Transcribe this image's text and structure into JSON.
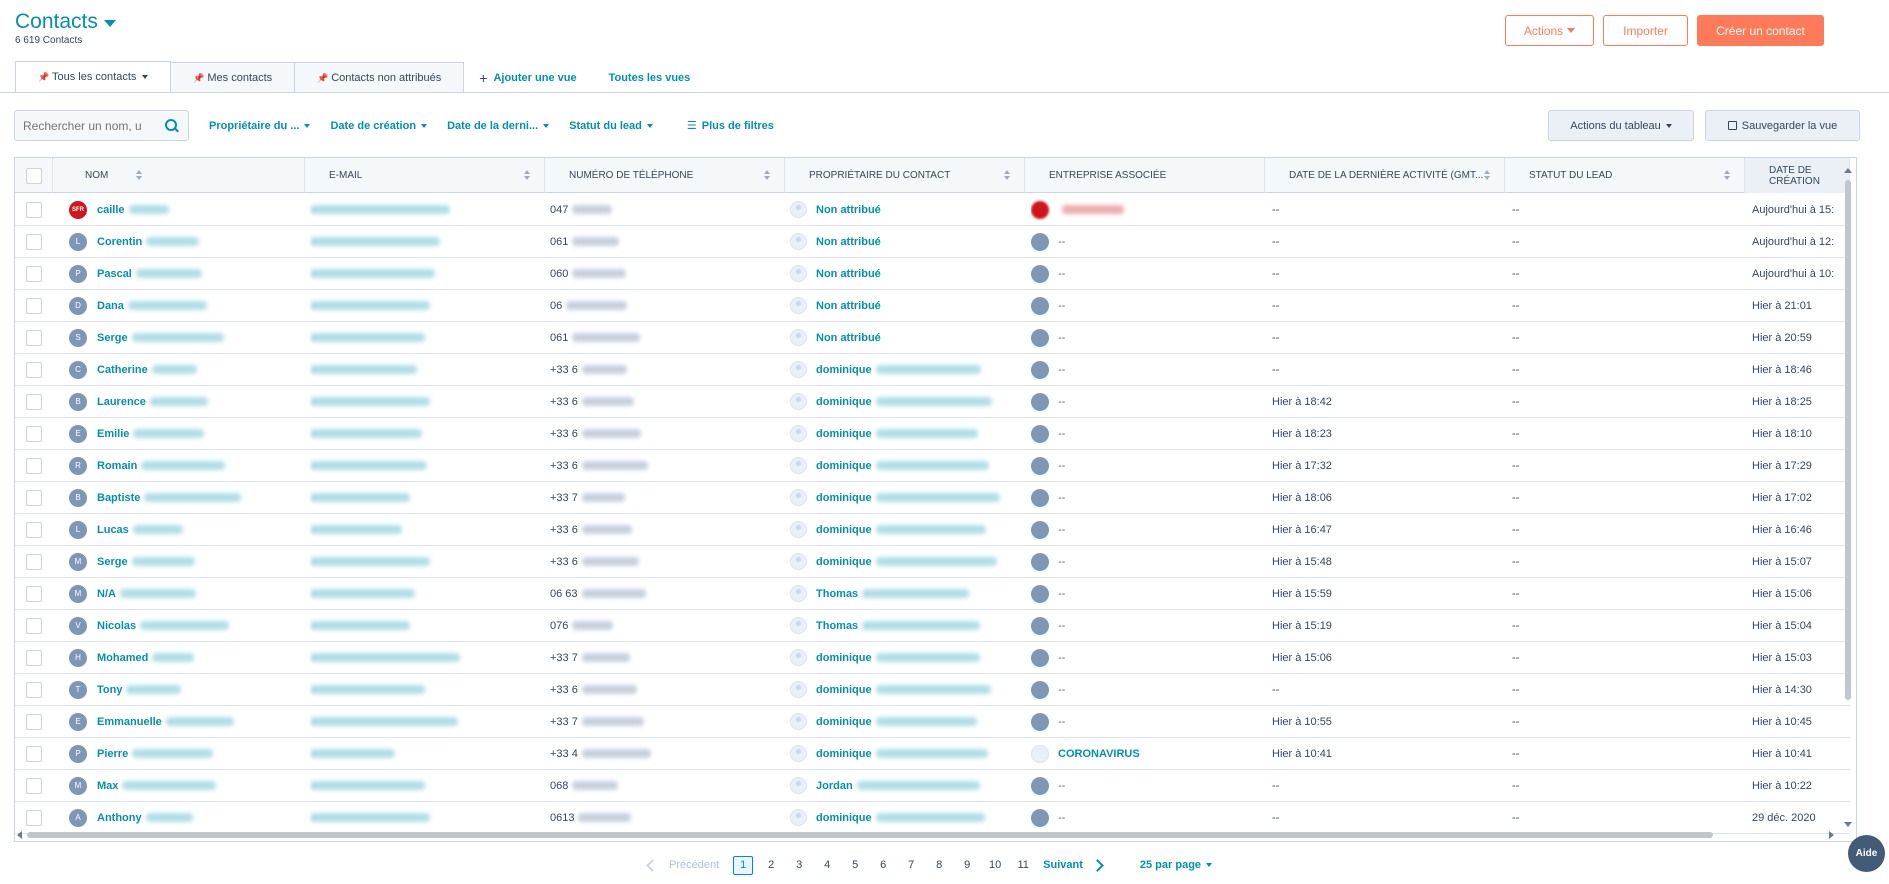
{
  "header": {
    "title": "Contacts",
    "subtitle": "6 619 Contacts"
  },
  "top_buttons": {
    "actions": "Actions",
    "import": "Importer",
    "create": "Créer un contact"
  },
  "tabs": [
    {
      "label": "Tous les contacts",
      "active": true
    },
    {
      "label": "Mes contacts",
      "active": false
    },
    {
      "label": "Contacts non attribués",
      "active": false
    }
  ],
  "tab_links": {
    "add_view": "Ajouter une vue",
    "all_views": "Toutes les vues"
  },
  "filters": {
    "search_placeholder": "Rechercher un nom, u",
    "owner": "Propriétaire du ...",
    "created": "Date de création",
    "last_activity": "Date de la derni...",
    "lead_status": "Statut du lead",
    "more": "Plus de filtres",
    "table_actions": "Actions du tableau",
    "save_view": "Sauvegarder la vue"
  },
  "columns": [
    "Nom",
    "E-mail",
    "Numéro de téléphone",
    "Propriétaire du contact",
    "Entreprise associée",
    "Date de la dernière activité (GMT...",
    "Statut du lead",
    "Date de création"
  ],
  "rows": [
    {
      "initial": "SFR",
      "name": "caille",
      "phone": "047",
      "owner": "Non attribué",
      "company": "",
      "company_type": "red",
      "activity": "--",
      "status": "--",
      "created": "Aujourd'hui à 15:"
    },
    {
      "initial": "L",
      "name": "Corentin",
      "phone": "061",
      "owner": "Non attribué",
      "company": "--",
      "company_type": "grey",
      "activity": "--",
      "status": "--",
      "created": "Aujourd'hui à 12:"
    },
    {
      "initial": "P",
      "name": "Pascal",
      "phone": "060",
      "owner": "Non attribué",
      "company": "--",
      "company_type": "grey",
      "activity": "--",
      "status": "--",
      "created": "Aujourd'hui à 10:"
    },
    {
      "initial": "D",
      "name": "Dana",
      "phone": "06",
      "owner": "Non attribué",
      "company": "--",
      "company_type": "grey",
      "activity": "--",
      "status": "--",
      "created": "Hier à 21:01"
    },
    {
      "initial": "S",
      "name": "Serge",
      "phone": "061",
      "owner": "Non attribué",
      "company": "--",
      "company_type": "grey",
      "activity": "--",
      "status": "--",
      "created": "Hier à 20:59"
    },
    {
      "initial": "C",
      "name": "Catherine",
      "phone": "+33 6",
      "owner": "dominique",
      "company": "--",
      "company_type": "grey",
      "activity": "--",
      "status": "--",
      "created": "Hier à 18:46"
    },
    {
      "initial": "B",
      "name": "Laurence",
      "phone": "+33 6",
      "owner": "dominique",
      "company": "--",
      "company_type": "grey",
      "activity": "Hier à 18:42",
      "status": "--",
      "created": "Hier à 18:25"
    },
    {
      "initial": "E",
      "name": "Emilie",
      "phone": "+33 6",
      "owner": "dominique",
      "company": "--",
      "company_type": "grey",
      "activity": "Hier à 18:23",
      "status": "--",
      "created": "Hier à 18:10"
    },
    {
      "initial": "R",
      "name": "Romain",
      "phone": "+33 6",
      "owner": "dominique",
      "company": "--",
      "company_type": "grey",
      "activity": "Hier à 17:32",
      "status": "--",
      "created": "Hier à 17:29"
    },
    {
      "initial": "B",
      "name": "Baptiste",
      "phone": "+33 7",
      "owner": "dominique",
      "company": "--",
      "company_type": "grey",
      "activity": "Hier à 18:06",
      "status": "--",
      "created": "Hier à 17:02"
    },
    {
      "initial": "L",
      "name": "Lucas",
      "phone": "+33 6",
      "owner": "dominique",
      "company": "--",
      "company_type": "grey",
      "activity": "Hier à 16:47",
      "status": "--",
      "created": "Hier à 16:46"
    },
    {
      "initial": "M",
      "name": "Serge",
      "phone": "+33 6",
      "owner": "dominique",
      "company": "--",
      "company_type": "grey",
      "activity": "Hier à 15:48",
      "status": "--",
      "created": "Hier à 15:07"
    },
    {
      "initial": "M",
      "name": "N/A",
      "phone": "06 63",
      "owner": "Thomas",
      "company": "--",
      "company_type": "grey",
      "activity": "Hier à 15:59",
      "status": "--",
      "created": "Hier à 15:06"
    },
    {
      "initial": "V",
      "name": "Nicolas",
      "phone": "076",
      "owner": "Thomas",
      "company": "--",
      "company_type": "grey",
      "activity": "Hier à 15:19",
      "status": "--",
      "created": "Hier à 15:04"
    },
    {
      "initial": "H",
      "name": "Mohamed",
      "phone": "+33 7",
      "owner": "dominique",
      "company": "--",
      "company_type": "grey",
      "activity": "Hier à 15:06",
      "status": "--",
      "created": "Hier à 15:03"
    },
    {
      "initial": "T",
      "name": "Tony",
      "phone": "+33 6",
      "owner": "dominique",
      "company": "--",
      "company_type": "grey",
      "activity": "--",
      "status": "--",
      "created": "Hier à 14:30"
    },
    {
      "initial": "E",
      "name": "Emmanuelle",
      "phone": "+33 7",
      "owner": "dominique",
      "company": "--",
      "company_type": "grey",
      "activity": "Hier à 10:55",
      "status": "--",
      "created": "Hier à 10:45"
    },
    {
      "initial": "P",
      "name": "Pierre",
      "phone": "+33 4",
      "owner": "dominique",
      "company": "CORONAVIRUS",
      "company_type": "light",
      "activity": "Hier à 10:41",
      "status": "--",
      "created": "Hier à 10:41"
    },
    {
      "initial": "M",
      "name": "Max",
      "phone": "068",
      "owner": "Jordan",
      "company": "--",
      "company_type": "grey",
      "activity": "--",
      "status": "--",
      "created": "Hier à 10:22"
    },
    {
      "initial": "A",
      "name": "Anthony",
      "phone": "0613",
      "owner": "dominique",
      "company": "--",
      "company_type": "grey",
      "activity": "--",
      "status": "--",
      "created": "29 déc. 2020"
    }
  ],
  "pagination": {
    "prev": "Précédent",
    "pages": [
      "1",
      "2",
      "3",
      "4",
      "5",
      "6",
      "7",
      "8",
      "9",
      "10",
      "11"
    ],
    "current": "1",
    "next": "Suivant",
    "per_page": "25 par page"
  },
  "help": "Aide"
}
